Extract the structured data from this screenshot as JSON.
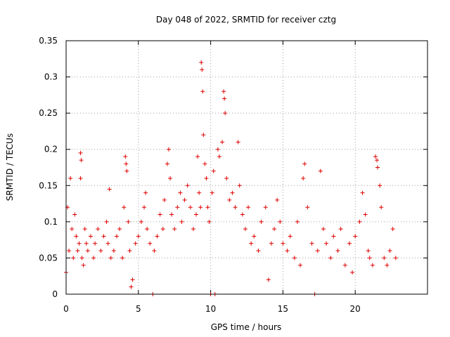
{
  "chart_data": {
    "type": "scatter",
    "title": "Day 048 of 2022, SRMTID for receiver cztg",
    "xlabel": "GPS time / hours",
    "ylabel": "SRMTID / TECUs",
    "xlim": [
      0,
      25
    ],
    "ylim": [
      0,
      0.35
    ],
    "x_ticks": [
      0,
      5,
      10,
      15,
      20
    ],
    "x_tick_labels": [
      "0",
      "5",
      "10",
      "15",
      "20"
    ],
    "y_ticks": [
      0,
      0.05,
      0.1,
      0.15,
      0.2,
      0.25,
      0.3,
      0.35
    ],
    "y_tick_labels": [
      "0",
      "0.05",
      "0.1",
      "0.15",
      "0.2",
      "0.25",
      "0.3",
      "0.35"
    ],
    "grid": true,
    "marker": "plus",
    "color": "#e00000",
    "series": [
      {
        "name": "SRMTID",
        "points": [
          [
            0.0,
            0.03
          ],
          [
            0.1,
            0.12
          ],
          [
            0.2,
            0.06
          ],
          [
            0.3,
            0.16
          ],
          [
            0.4,
            0.09
          ],
          [
            0.5,
            0.05
          ],
          [
            0.6,
            0.11
          ],
          [
            0.7,
            0.08
          ],
          [
            0.8,
            0.06
          ],
          [
            0.9,
            0.07
          ],
          [
            1.0,
            0.195
          ],
          [
            1.05,
            0.185
          ],
          [
            1.0,
            0.16
          ],
          [
            1.1,
            0.05
          ],
          [
            1.2,
            0.04
          ],
          [
            1.3,
            0.09
          ],
          [
            1.4,
            0.07
          ],
          [
            1.5,
            0.06
          ],
          [
            1.7,
            0.08
          ],
          [
            1.9,
            0.05
          ],
          [
            2.0,
            0.07
          ],
          [
            2.2,
            0.09
          ],
          [
            2.4,
            0.06
          ],
          [
            2.6,
            0.08
          ],
          [
            2.8,
            0.1
          ],
          [
            2.9,
            0.07
          ],
          [
            3.0,
            0.145
          ],
          [
            3.1,
            0.05
          ],
          [
            3.3,
            0.06
          ],
          [
            3.5,
            0.08
          ],
          [
            3.7,
            0.09
          ],
          [
            3.9,
            0.05
          ],
          [
            4.0,
            0.12
          ],
          [
            4.1,
            0.19
          ],
          [
            4.15,
            0.18
          ],
          [
            4.2,
            0.17
          ],
          [
            4.3,
            0.1
          ],
          [
            4.4,
            0.06
          ],
          [
            4.5,
            0.01
          ],
          [
            4.6,
            0.02
          ],
          [
            4.8,
            0.07
          ],
          [
            5.0,
            0.08
          ],
          [
            5.2,
            0.1
          ],
          [
            5.4,
            0.12
          ],
          [
            5.5,
            0.14
          ],
          [
            5.6,
            0.09
          ],
          [
            5.8,
            0.07
          ],
          [
            6.0,
            0.0
          ],
          [
            6.1,
            0.06
          ],
          [
            6.3,
            0.08
          ],
          [
            6.5,
            0.11
          ],
          [
            6.7,
            0.09
          ],
          [
            6.8,
            0.13
          ],
          [
            7.0,
            0.18
          ],
          [
            7.1,
            0.2
          ],
          [
            7.2,
            0.16
          ],
          [
            7.3,
            0.11
          ],
          [
            7.5,
            0.09
          ],
          [
            7.7,
            0.12
          ],
          [
            7.9,
            0.14
          ],
          [
            8.0,
            0.1
          ],
          [
            8.2,
            0.13
          ],
          [
            8.4,
            0.15
          ],
          [
            8.6,
            0.12
          ],
          [
            8.8,
            0.09
          ],
          [
            9.0,
            0.11
          ],
          [
            9.1,
            0.19
          ],
          [
            9.2,
            0.14
          ],
          [
            9.3,
            0.12
          ],
          [
            9.35,
            0.32
          ],
          [
            9.4,
            0.31
          ],
          [
            9.45,
            0.28
          ],
          [
            9.5,
            0.22
          ],
          [
            9.6,
            0.18
          ],
          [
            9.7,
            0.16
          ],
          [
            9.8,
            0.12
          ],
          [
            9.9,
            0.1
          ],
          [
            10.0,
            0.0
          ],
          [
            10.1,
            0.14
          ],
          [
            10.2,
            0.17
          ],
          [
            10.3,
            0.0
          ],
          [
            10.5,
            0.2
          ],
          [
            10.6,
            0.19
          ],
          [
            10.8,
            0.21
          ],
          [
            10.9,
            0.28
          ],
          [
            10.95,
            0.27
          ],
          [
            11.0,
            0.25
          ],
          [
            11.1,
            0.16
          ],
          [
            11.3,
            0.13
          ],
          [
            11.5,
            0.14
          ],
          [
            11.7,
            0.12
          ],
          [
            11.9,
            0.21
          ],
          [
            12.0,
            0.15
          ],
          [
            12.2,
            0.11
          ],
          [
            12.4,
            0.09
          ],
          [
            12.6,
            0.12
          ],
          [
            12.8,
            0.07
          ],
          [
            13.0,
            0.08
          ],
          [
            13.3,
            0.06
          ],
          [
            13.5,
            0.1
          ],
          [
            13.8,
            0.12
          ],
          [
            14.0,
            0.02
          ],
          [
            14.2,
            0.07
          ],
          [
            14.4,
            0.09
          ],
          [
            14.6,
            0.13
          ],
          [
            14.8,
            0.1
          ],
          [
            15.0,
            0.07
          ],
          [
            15.3,
            0.06
          ],
          [
            15.5,
            0.08
          ],
          [
            15.8,
            0.05
          ],
          [
            16.0,
            0.1
          ],
          [
            16.2,
            0.04
          ],
          [
            16.4,
            0.16
          ],
          [
            16.5,
            0.18
          ],
          [
            16.7,
            0.12
          ],
          [
            17.0,
            0.07
          ],
          [
            17.2,
            0.0
          ],
          [
            17.4,
            0.06
          ],
          [
            17.6,
            0.17
          ],
          [
            17.8,
            0.09
          ],
          [
            18.0,
            0.07
          ],
          [
            18.3,
            0.05
          ],
          [
            18.5,
            0.08
          ],
          [
            18.8,
            0.06
          ],
          [
            19.0,
            0.09
          ],
          [
            19.3,
            0.04
          ],
          [
            19.6,
            0.07
          ],
          [
            19.8,
            0.03
          ],
          [
            20.0,
            0.08
          ],
          [
            20.3,
            0.1
          ],
          [
            20.5,
            0.14
          ],
          [
            20.7,
            0.11
          ],
          [
            20.9,
            0.06
          ],
          [
            21.0,
            0.05
          ],
          [
            21.2,
            0.04
          ],
          [
            21.4,
            0.19
          ],
          [
            21.5,
            0.185
          ],
          [
            21.55,
            0.175
          ],
          [
            21.7,
            0.15
          ],
          [
            21.8,
            0.12
          ],
          [
            22.0,
            0.05
          ],
          [
            22.2,
            0.04
          ],
          [
            22.4,
            0.06
          ],
          [
            22.6,
            0.09
          ],
          [
            22.8,
            0.05
          ]
        ]
      }
    ]
  }
}
